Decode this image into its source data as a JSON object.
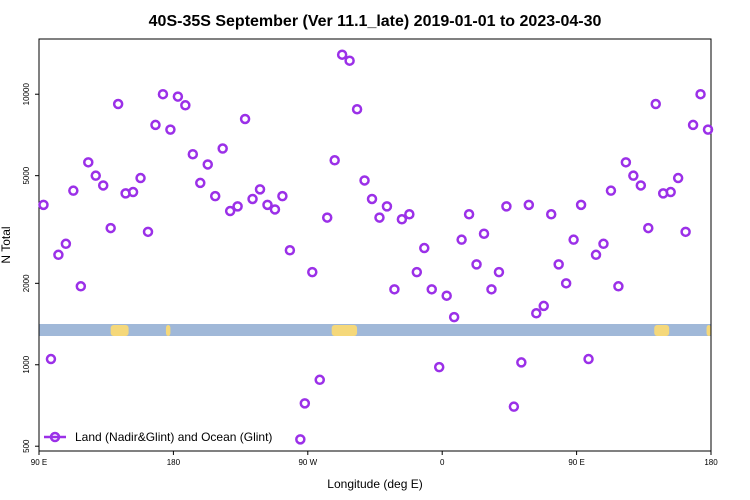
{
  "chart_data": {
    "type": "scatter",
    "title": "40S-35S September (Ver 11.1_late)   2019-01-01 to 2023-04-30",
    "xlabel": "Longitude (deg E)",
    "ylabel": "N Total",
    "y_scale": "log",
    "ylim": [
      480,
      16000
    ],
    "xlim": [
      0,
      450
    ],
    "x_ticks": [
      {
        "value": 0,
        "label": "90 E"
      },
      {
        "value": 90,
        "label": "180"
      },
      {
        "value": 180,
        "label": "90 W"
      },
      {
        "value": 270,
        "label": "0"
      },
      {
        "value": 360,
        "label": "90 E"
      },
      {
        "value": 450,
        "label": "180"
      }
    ],
    "y_ticks": [
      {
        "value": 500,
        "label": "500"
      },
      {
        "value": 1000,
        "label": "1000"
      },
      {
        "value": 2000,
        "label": "2000"
      },
      {
        "value": 5000,
        "label": "5000"
      },
      {
        "value": 10000,
        "label": "10000"
      }
    ],
    "land_strip": {
      "ocean_color": "#a0b8d8",
      "land_color": "#f5d87a",
      "land_segments": [
        [
          48,
          60
        ],
        [
          85,
          88
        ],
        [
          196,
          213
        ],
        [
          447,
          450
        ],
        [
          412,
          422
        ]
      ]
    },
    "legend": {
      "position": "bottom-left",
      "entries": [
        "Land (Nadir&Glint) and Ocean (Glint)"
      ]
    },
    "series": [
      {
        "marker_color": "#9b30e8",
        "points": [
          [
            3,
            3900
          ],
          [
            8,
            1050
          ],
          [
            13,
            2550
          ],
          [
            18,
            2800
          ],
          [
            23,
            4400
          ],
          [
            28,
            1950
          ],
          [
            33,
            5600
          ],
          [
            38,
            5000
          ],
          [
            43,
            4600
          ],
          [
            48,
            3200
          ],
          [
            53,
            9200
          ],
          [
            58,
            4300
          ],
          [
            63,
            4350
          ],
          [
            68,
            4900
          ],
          [
            73,
            3100
          ],
          [
            78,
            7700
          ],
          [
            83,
            10000
          ],
          [
            88,
            7400
          ],
          [
            93,
            9800
          ],
          [
            98,
            9100
          ],
          [
            103,
            6000
          ],
          [
            108,
            4700
          ],
          [
            113,
            5500
          ],
          [
            118,
            4200
          ],
          [
            123,
            6300
          ],
          [
            128,
            3700
          ],
          [
            133,
            3850
          ],
          [
            138,
            8100
          ],
          [
            143,
            4100
          ],
          [
            148,
            4450
          ],
          [
            153,
            3900
          ],
          [
            158,
            3750
          ],
          [
            163,
            4200
          ],
          [
            168,
            2650
          ],
          [
            178,
            720
          ],
          [
            183,
            2200
          ],
          [
            188,
            880
          ],
          [
            193,
            3500
          ],
          [
            198,
            5700
          ],
          [
            203,
            14000
          ],
          [
            208,
            13300
          ],
          [
            213,
            8800
          ],
          [
            218,
            4800
          ],
          [
            223,
            4100
          ],
          [
            228,
            3500
          ],
          [
            233,
            3850
          ],
          [
            238,
            1900
          ],
          [
            243,
            3450
          ],
          [
            248,
            3600
          ],
          [
            253,
            2200
          ],
          [
            258,
            2700
          ],
          [
            263,
            1900
          ],
          [
            268,
            980
          ],
          [
            273,
            1800
          ],
          [
            278,
            1500
          ],
          [
            283,
            2900
          ],
          [
            288,
            3600
          ],
          [
            293,
            2350
          ],
          [
            298,
            3050
          ],
          [
            303,
            1900
          ],
          [
            308,
            2200
          ],
          [
            313,
            3850
          ],
          [
            318,
            700
          ],
          [
            323,
            1020
          ],
          [
            328,
            3900
          ],
          [
            333,
            1550
          ],
          [
            338,
            1650
          ],
          [
            343,
            3600
          ],
          [
            348,
            2350
          ],
          [
            353,
            2000
          ],
          [
            358,
            2900
          ],
          [
            363,
            3900
          ],
          [
            368,
            1050
          ],
          [
            373,
            2550
          ],
          [
            378,
            2800
          ],
          [
            383,
            4400
          ],
          [
            388,
            1950
          ],
          [
            393,
            5600
          ],
          [
            398,
            5000
          ],
          [
            403,
            4600
          ],
          [
            408,
            3200
          ],
          [
            413,
            9200
          ],
          [
            418,
            4300
          ],
          [
            423,
            4350
          ],
          [
            428,
            4900
          ],
          [
            433,
            3100
          ],
          [
            438,
            7700
          ],
          [
            443,
            10000
          ],
          [
            448,
            7400
          ]
        ]
      }
    ]
  },
  "extra_points": [
    [
      175,
      530
    ]
  ]
}
